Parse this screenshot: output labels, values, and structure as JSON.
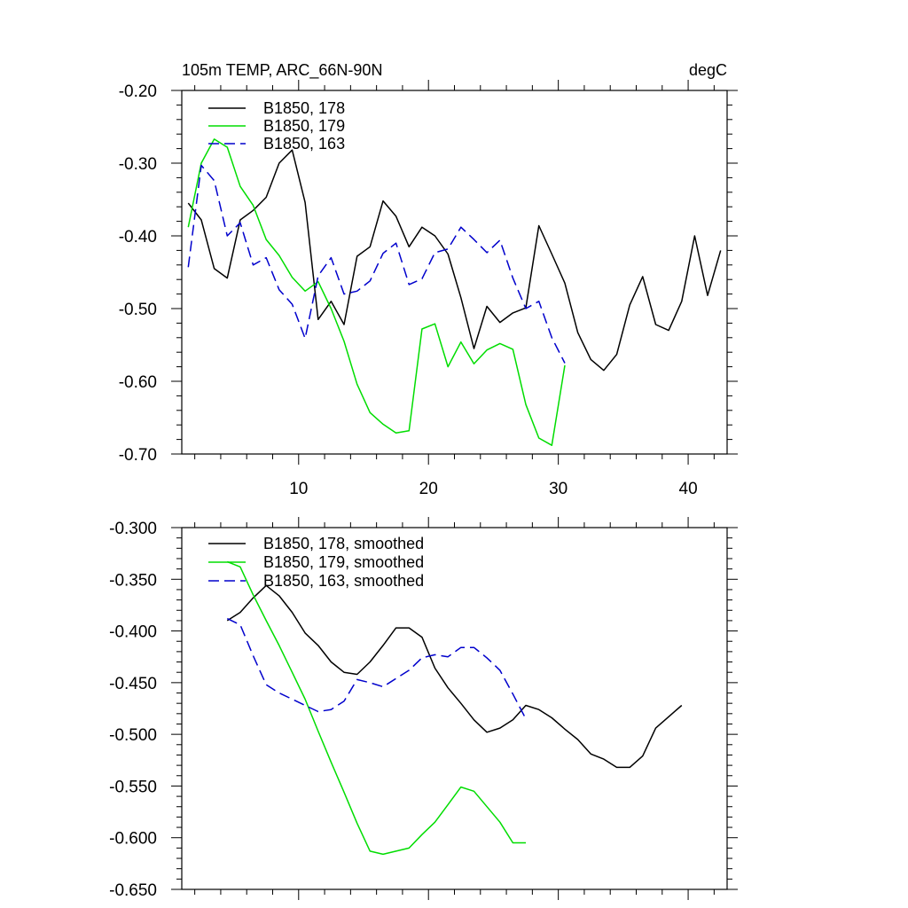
{
  "chart_data": [
    {
      "type": "line",
      "title": "105m TEMP, ARC_66N-90N",
      "units": "degC",
      "xlabel": "",
      "ylabel": "",
      "xlim": [
        1,
        43
      ],
      "ylim": [
        -0.7,
        -0.2
      ],
      "xticks": [
        10,
        20,
        30,
        40
      ],
      "xtick_labels": [
        "10",
        "20",
        "30",
        "40"
      ],
      "yticks": [
        -0.7,
        -0.6,
        -0.5,
        -0.4,
        -0.3,
        -0.2
      ],
      "ytick_labels": [
        "-0.70",
        "-0.60",
        "-0.50",
        "-0.40",
        "-0.30",
        "-0.20"
      ],
      "legend_position": "top-left",
      "series": [
        {
          "name": "B1850, 178",
          "color": "#000000",
          "dash": "solid",
          "x": [
            1.5,
            2.5,
            3.5,
            4.5,
            5.5,
            6.5,
            7.5,
            8.5,
            9.5,
            10.5,
            11.5,
            12.5,
            13.5,
            14.5,
            15.5,
            16.5,
            17.5,
            18.5,
            19.5,
            20.5,
            21.5,
            22.5,
            23.5,
            24.5,
            25.5,
            26.5,
            27.5,
            28.5,
            29.5,
            30.5,
            31.5,
            32.5,
            33.5,
            34.5,
            35.5,
            36.5,
            37.5,
            38.5,
            39.5,
            40.5,
            41.5,
            42.5
          ],
          "y": [
            -0.355,
            -0.378,
            -0.445,
            -0.458,
            -0.378,
            -0.365,
            -0.347,
            -0.3,
            -0.282,
            -0.354,
            -0.515,
            -0.49,
            -0.522,
            -0.428,
            -0.415,
            -0.352,
            -0.373,
            -0.415,
            -0.388,
            -0.4,
            -0.425,
            -0.485,
            -0.555,
            -0.497,
            -0.519,
            -0.506,
            -0.499,
            -0.386,
            -0.425,
            -0.465,
            -0.533,
            -0.57,
            -0.585,
            -0.563,
            -0.495,
            -0.456,
            -0.522,
            -0.53,
            -0.49,
            -0.4,
            -0.482,
            -0.42
          ]
        },
        {
          "name": "B1850, 179",
          "color": "#00dd00",
          "dash": "solid",
          "x": [
            1.5,
            2.5,
            3.5,
            4.5,
            5.5,
            6.5,
            7.5,
            8.5,
            9.5,
            10.5,
            11.5,
            12.5,
            13.5,
            14.5,
            15.5,
            16.5,
            17.5,
            18.5,
            19.5,
            20.5,
            21.5,
            22.5,
            23.5,
            24.5,
            25.5,
            26.5,
            27.5,
            28.5,
            29.5,
            30.5
          ],
          "y": [
            -0.388,
            -0.3,
            -0.267,
            -0.278,
            -0.332,
            -0.358,
            -0.405,
            -0.427,
            -0.457,
            -0.476,
            -0.463,
            -0.5,
            -0.545,
            -0.604,
            -0.643,
            -0.659,
            -0.671,
            -0.668,
            -0.528,
            -0.521,
            -0.58,
            -0.546,
            -0.576,
            -0.557,
            -0.548,
            -0.556,
            -0.632,
            -0.678,
            -0.688,
            -0.578
          ]
        },
        {
          "name": "B1850, 163",
          "color": "#0000cc",
          "dash": "dashed",
          "x": [
            1.5,
            2.5,
            3.5,
            4.5,
            5.5,
            6.5,
            7.5,
            8.5,
            9.5,
            10.5,
            11.5,
            12.5,
            13.5,
            14.5,
            15.5,
            16.5,
            17.5,
            18.5,
            19.5,
            20.5,
            21.5,
            22.5,
            23.5,
            24.5,
            25.5,
            26.5,
            27.5,
            28.5,
            29.5,
            30.5
          ],
          "y": [
            -0.443,
            -0.303,
            -0.324,
            -0.4,
            -0.382,
            -0.44,
            -0.43,
            -0.474,
            -0.494,
            -0.541,
            -0.455,
            -0.43,
            -0.48,
            -0.476,
            -0.462,
            -0.424,
            -0.41,
            -0.467,
            -0.459,
            -0.423,
            -0.418,
            -0.388,
            -0.405,
            -0.423,
            -0.406,
            -0.458,
            -0.5,
            -0.49,
            -0.54,
            -0.575
          ]
        }
      ]
    },
    {
      "type": "line",
      "title": "",
      "xlabel": "",
      "ylabel": "",
      "xlim": [
        1,
        43
      ],
      "ylim": [
        -0.65,
        -0.3
      ],
      "xticks": [
        10,
        20,
        30,
        40
      ],
      "yticks": [
        -0.65,
        -0.6,
        -0.55,
        -0.5,
        -0.45,
        -0.4,
        -0.35,
        -0.3
      ],
      "ytick_labels": [
        "-0.650",
        "-0.600",
        "-0.550",
        "-0.500",
        "-0.450",
        "-0.400",
        "-0.350",
        "-0.300"
      ],
      "legend_position": "top-left",
      "series": [
        {
          "name": "B1850, 178, smoothed",
          "color": "#000000",
          "dash": "solid",
          "x": [
            4.5,
            5.5,
            6.5,
            7.5,
            8.5,
            9.5,
            10.5,
            11.5,
            12.5,
            13.5,
            14.5,
            15.5,
            16.5,
            17.5,
            18.5,
            19.5,
            20.5,
            21.5,
            22.5,
            23.5,
            24.5,
            25.5,
            26.5,
            27.5,
            28.5,
            29.5,
            30.5,
            31.5,
            32.5,
            33.5,
            34.5,
            35.5,
            36.5,
            37.5,
            38.5,
            39.5
          ],
          "y": [
            -0.39,
            -0.382,
            -0.368,
            -0.356,
            -0.366,
            -0.382,
            -0.402,
            -0.414,
            -0.43,
            -0.44,
            -0.442,
            -0.43,
            -0.414,
            -0.397,
            -0.397,
            -0.406,
            -0.436,
            -0.455,
            -0.47,
            -0.486,
            -0.498,
            -0.494,
            -0.486,
            -0.472,
            -0.476,
            -0.484,
            -0.495,
            -0.505,
            -0.519,
            -0.524,
            -0.532,
            -0.532,
            -0.521,
            -0.494,
            -0.483,
            -0.472
          ]
        },
        {
          "name": "B1850, 179, smoothed",
          "color": "#00dd00",
          "dash": "solid",
          "x": [
            4.5,
            5.5,
            6.5,
            7.5,
            8.5,
            9.5,
            10.5,
            11.5,
            12.5,
            13.5,
            14.5,
            15.5,
            16.5,
            17.5,
            18.5,
            19.5,
            20.5,
            21.5,
            22.5,
            23.5,
            24.5,
            25.5,
            26.5,
            27.5
          ],
          "y": [
            -0.333,
            -0.338,
            -0.365,
            -0.39,
            -0.414,
            -0.44,
            -0.466,
            -0.497,
            -0.527,
            -0.556,
            -0.586,
            -0.613,
            -0.616,
            -0.613,
            -0.61,
            -0.597,
            -0.585,
            -0.568,
            -0.551,
            -0.555,
            -0.57,
            -0.585,
            -0.605,
            -0.605
          ]
        },
        {
          "name": "B1850, 163, smoothed",
          "color": "#0000cc",
          "dash": "dashed",
          "x": [
            4.5,
            5.5,
            6.5,
            7.5,
            8.5,
            9.5,
            10.5,
            11.5,
            12.5,
            13.5,
            14.5,
            15.5,
            16.5,
            17.5,
            18.5,
            19.5,
            20.5,
            21.5,
            22.5,
            23.5,
            24.5,
            25.5,
            26.5,
            27.5
          ],
          "y": [
            -0.388,
            -0.394,
            -0.424,
            -0.452,
            -0.46,
            -0.466,
            -0.472,
            -0.478,
            -0.476,
            -0.468,
            -0.447,
            -0.45,
            -0.454,
            -0.446,
            -0.438,
            -0.426,
            -0.423,
            -0.425,
            -0.416,
            -0.416,
            -0.426,
            -0.438,
            -0.461,
            -0.485
          ]
        }
      ]
    }
  ]
}
